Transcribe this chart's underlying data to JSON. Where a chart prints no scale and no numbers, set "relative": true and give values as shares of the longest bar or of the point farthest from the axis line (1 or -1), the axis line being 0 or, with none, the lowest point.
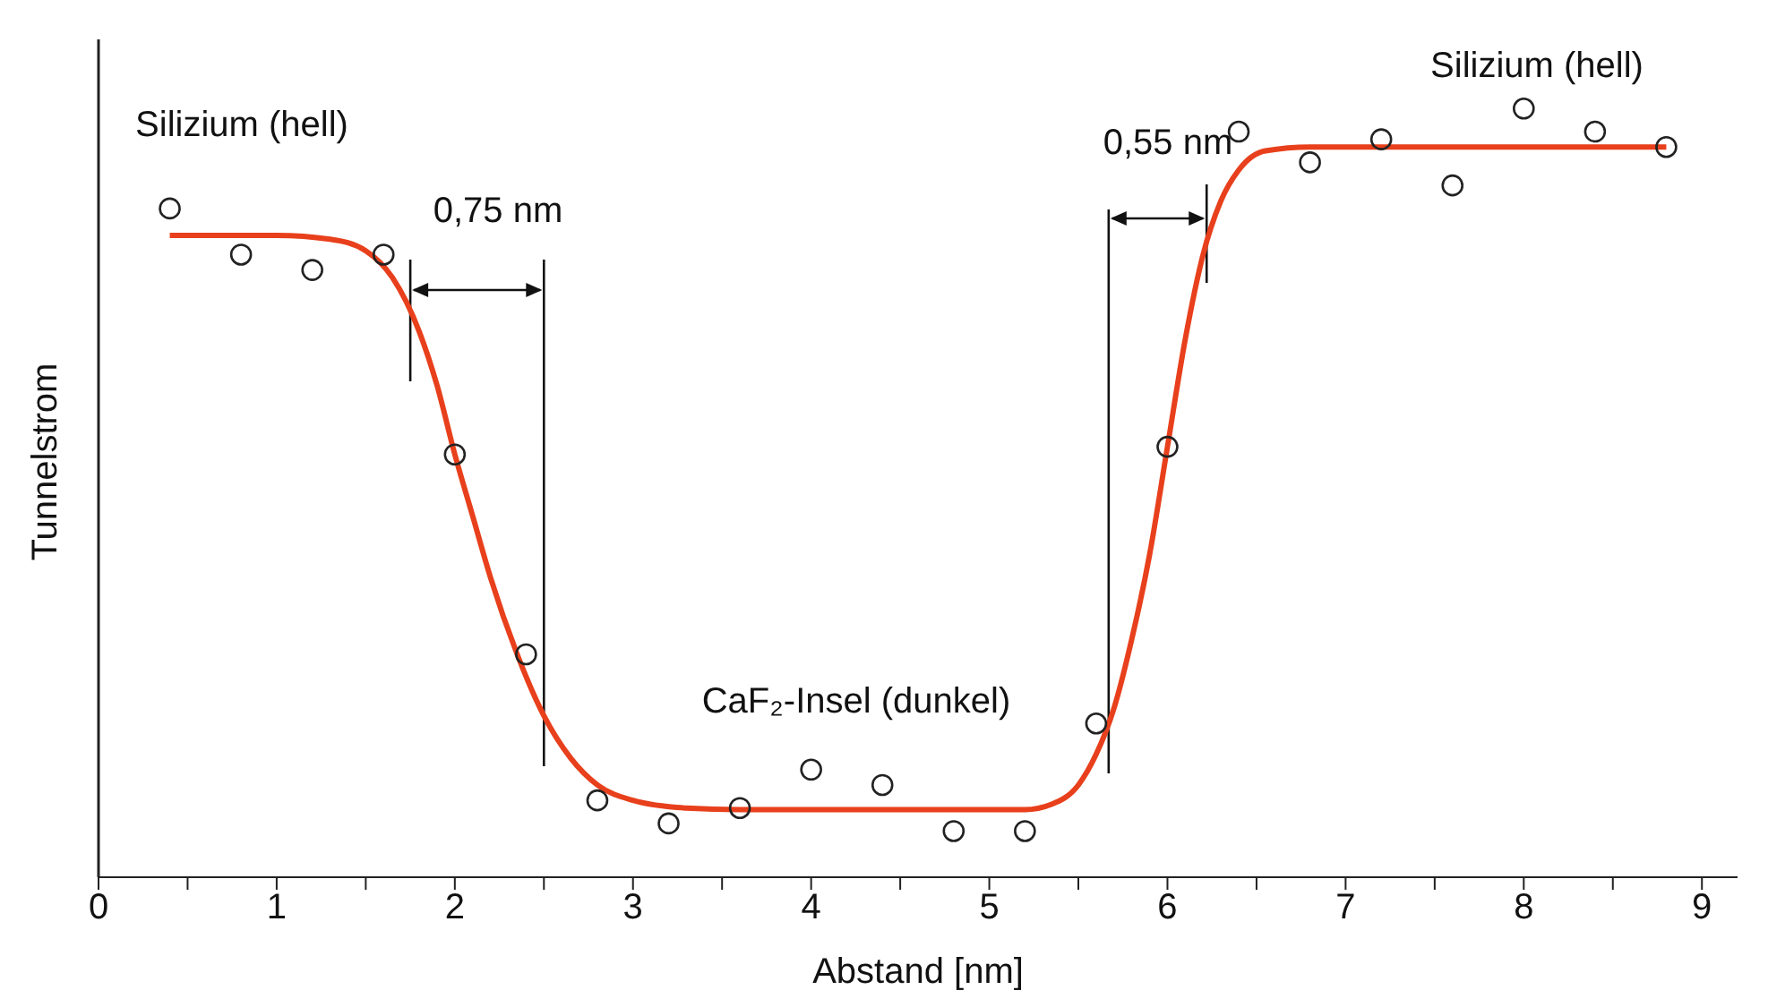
{
  "chart_data": {
    "type": "scatter",
    "relative": true,
    "xlabel": "Abstand [nm]",
    "ylabel": "Tunnelstrom",
    "xlim": [
      0,
      9.2
    ],
    "xticks": [
      0,
      {
        "value": 0.5,
        "label": null
      },
      1,
      {
        "value": 1.5,
        "label": null
      },
      2,
      {
        "value": 2.5,
        "label": null
      },
      3,
      {
        "value": 3.5,
        "label": null
      },
      4,
      {
        "value": 4.5,
        "label": null
      },
      5,
      {
        "value": 5.5,
        "label": null
      },
      6,
      {
        "value": 6.5,
        "label": null
      },
      7,
      {
        "value": 7.5,
        "label": null
      },
      8,
      {
        "value": 8.5,
        "label": null
      },
      9
    ],
    "series": [
      {
        "color": "#222222",
        "marker": "circle",
        "x": [
          0.4,
          0.8,
          1.2,
          1.6,
          2.0,
          2.4,
          2.8,
          3.2,
          3.6,
          4.0,
          4.4,
          4.8,
          5.2,
          5.6,
          6.0,
          6.4,
          6.8,
          7.2,
          7.6,
          8.0,
          8.4,
          8.8
        ],
        "values": [
          0.87,
          0.81,
          0.79,
          0.81,
          0.55,
          0.29,
          0.1,
          0.07,
          0.09,
          0.14,
          0.12,
          0.06,
          0.06,
          0.2,
          0.56,
          0.97,
          0.93,
          0.96,
          0.9,
          1.0,
          0.97,
          0.95
        ]
      },
      {
        "type": "line",
        "color": "#e8401c",
        "marker": "none",
        "line_style": "solid",
        "x": [
          0.4,
          1.0,
          1.3,
          1.5,
          1.65,
          1.8,
          1.9,
          2.0,
          2.1,
          2.2,
          2.35,
          2.5,
          2.65,
          2.8,
          3.0,
          3.3,
          3.6,
          5.2,
          5.35,
          5.5,
          5.6,
          5.7,
          5.8,
          5.9,
          6.0,
          6.1,
          6.2,
          6.3,
          6.4,
          6.55,
          6.8,
          8.8
        ],
        "values": [
          0.835,
          0.835,
          0.83,
          0.815,
          0.78,
          0.71,
          0.64,
          0.55,
          0.47,
          0.39,
          0.29,
          0.21,
          0.155,
          0.12,
          0.1,
          0.09,
          0.088,
          0.088,
          0.095,
          0.12,
          0.16,
          0.22,
          0.31,
          0.42,
          0.56,
          0.7,
          0.81,
          0.88,
          0.92,
          0.945,
          0.95,
          0.95
        ]
      }
    ],
    "ref_lines": [
      {
        "axis": "x",
        "value": 1.75,
        "color": "#111111"
      },
      {
        "axis": "x",
        "value": 2.5,
        "color": "#111111"
      },
      {
        "axis": "x",
        "value": 5.67,
        "color": "#111111"
      },
      {
        "axis": "x",
        "value": 6.22,
        "color": "#111111"
      }
    ],
    "annotations": [
      "Silizium (hell)",
      "0,75 nm",
      "CaF₂-Insel (dunkel)",
      "0,55 nm",
      "Silizium (hell)"
    ]
  }
}
